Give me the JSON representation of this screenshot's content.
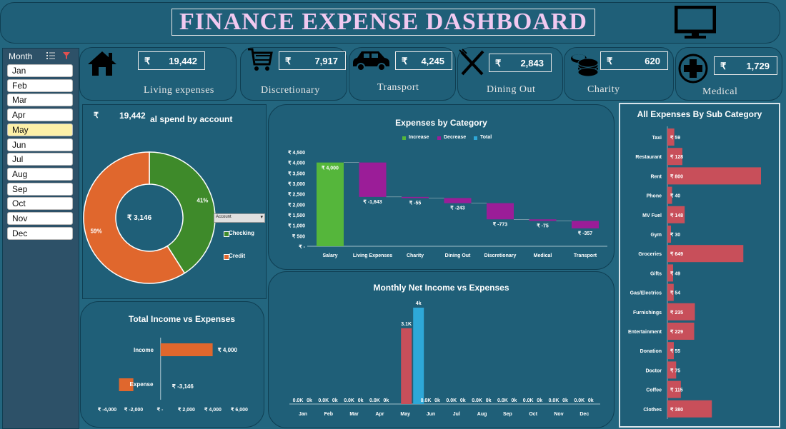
{
  "header": {
    "title": "FINANCE EXPENSE DASHBOARD"
  },
  "currency": "₹",
  "kpis": [
    {
      "label": "Living expenses",
      "value": "19,442",
      "icon": "house-icon"
    },
    {
      "label": "Discretionary",
      "value": "7,917",
      "icon": "shopping-cart-icon"
    },
    {
      "label": "Transport",
      "value": "4,245",
      "icon": "car-icon"
    },
    {
      "label": "Dining Out",
      "value": "2,843",
      "icon": "fork-knife-icon"
    },
    {
      "label": "Charity",
      "value": "620",
      "icon": "coins-icon"
    },
    {
      "label": "Medical",
      "value": "1,729",
      "icon": "medical-cross-icon"
    }
  ],
  "slicer": {
    "title": "Month",
    "months": [
      "Jan",
      "Feb",
      "Mar",
      "Apr",
      "May",
      "Jun",
      "Jul",
      "Aug",
      "Sep",
      "Oct",
      "Nov",
      "Dec"
    ],
    "selected": "May"
  },
  "donut": {
    "title": "al spend by account",
    "overlay_value": "19,442",
    "center_value": "₹ 3,146",
    "filter_label": "Account",
    "chart_data": {
      "type": "pie",
      "categories": [
        "Checking",
        "Credit"
      ],
      "values": [
        41,
        59
      ],
      "labels": [
        "41%",
        "59%"
      ],
      "colors": [
        "#3e8a2a",
        "#e0672d"
      ]
    }
  },
  "waterfall": {
    "title": "Expenses by Category",
    "legend": [
      "Increase",
      "Decrease",
      "Total"
    ],
    "legend_colors": [
      "#55b63b",
      "#9b1d98",
      "#2ea8d8"
    ],
    "chart_data": {
      "type": "bar",
      "categories": [
        "Salary",
        "Living Expenses",
        "Charity",
        "Dining Out",
        "Discretionary",
        "Medical",
        "Transport"
      ],
      "values": [
        4000,
        -1643,
        -55,
        -243,
        -773,
        -75,
        -357
      ],
      "data_labels": [
        "₹ 4,000",
        "₹ -1,643",
        "₹ -55",
        "₹ -243",
        "₹ -773",
        "₹ -75",
        "₹ -357"
      ],
      "yticks": [
        "₹ 4,500",
        "₹ 4,000",
        "₹ 3,500",
        "₹ 3,000",
        "₹ 2,500",
        "₹ 2,000",
        "₹ 1,500",
        "₹ 1,000",
        "₹ 500",
        "₹ -"
      ],
      "ylim": [
        0,
        4500
      ]
    }
  },
  "income_expense": {
    "title": "Total Income vs Expenses",
    "chart_data": {
      "type": "bar",
      "categories": [
        "Income",
        "Expense"
      ],
      "values": [
        4000,
        -3146
      ],
      "data_labels": [
        "₹ 4,000",
        "₹ -3,146"
      ],
      "xticks": [
        "₹ -4,000",
        "₹ -2,000",
        "₹ -",
        "₹ 2,000",
        "₹ 4,000",
        "₹ 6,000"
      ],
      "xlim": [
        -4000,
        6000
      ]
    }
  },
  "monthly": {
    "title": "Monthly Net Income vs Expenses",
    "chart_data": {
      "type": "bar",
      "categories": [
        "Jan",
        "Feb",
        "Mar",
        "Apr",
        "May",
        "Jun",
        "Jul",
        "Aug",
        "Sep",
        "Oct",
        "Nov",
        "Dec"
      ],
      "series": [
        {
          "values": [
            0,
            0,
            0,
            0,
            3146,
            0,
            0,
            0,
            0,
            0,
            0,
            0
          ],
          "labels": [
            "0.0K",
            "0.0K",
            "0.0K",
            "0.0K",
            "3.1K",
            "0.0K",
            "0.0K",
            "0.0K",
            "0.0K",
            "0.0K",
            "0.0K",
            "0.0K"
          ],
          "color": "#c84f5a"
        },
        {
          "values": [
            0,
            0,
            0,
            0,
            4000,
            0,
            0,
            0,
            0,
            0,
            0,
            0
          ],
          "labels": [
            "0k",
            "0k",
            "0k",
            "0k",
            "4k",
            "0k",
            "0k",
            "0k",
            "0k",
            "0k",
            "0k",
            "0k"
          ],
          "color": "#2ea8d8"
        }
      ]
    }
  },
  "subcategory": {
    "title": "All Expenses By Sub Category",
    "chart_data": {
      "type": "bar",
      "categories": [
        "Taxi",
        "Restaurant",
        "Rent",
        "Phone",
        "MV Fuel",
        "Gym",
        "Groceries",
        "Gifts",
        "Gas/Electrics",
        "Furnishings",
        "Entertainment",
        "Donation",
        "Doctor",
        "Coffee",
        "Clothes"
      ],
      "values": [
        59,
        128,
        800,
        40,
        148,
        30,
        649,
        49,
        54,
        235,
        229,
        55,
        75,
        115,
        380
      ],
      "data_labels": [
        "₹ 59",
        "₹ 128",
        "₹ 800",
        "₹ 40",
        "₹ 148",
        "₹ 30",
        "₹ 649",
        "₹ 49",
        "₹ 54",
        "₹ 235",
        "₹ 229",
        "₹ 55",
        "₹ 75",
        "₹ 115",
        "₹ 380"
      ],
      "color": "#c84f5a"
    }
  }
}
